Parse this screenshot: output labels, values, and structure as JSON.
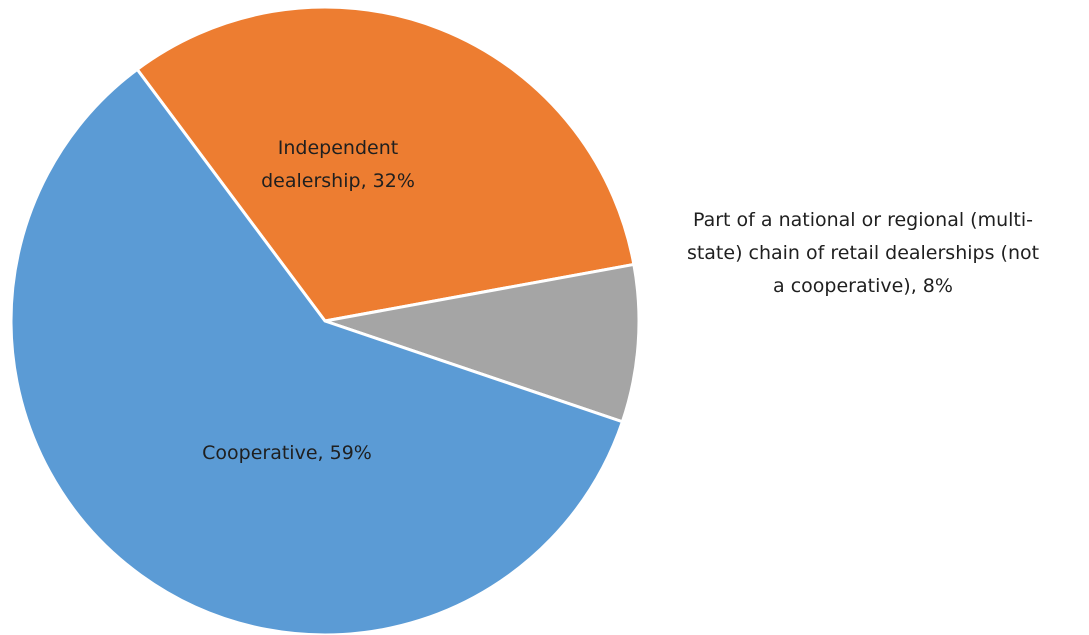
{
  "chart_data": {
    "type": "pie",
    "title": "",
    "legend": "none",
    "data_labels": "category name and percentage",
    "slices": [
      {
        "name": "Independent dealership",
        "value": 32,
        "label_lines": [
          "Independent",
          "dealership, 32%"
        ],
        "color": "#ed7d31"
      },
      {
        "name": "Part of a national or regional (multi-state) chain of retail dealerships (not a cooperative)",
        "value": 8,
        "label_lines": [
          "Part of a national or regional (multi-",
          "state) chain of retail dealerships (not",
          "a cooperative), 8%"
        ],
        "color": "#a5a5a5"
      },
      {
        "name": "Cooperative",
        "value": 59,
        "label_lines": [
          "Cooperative, 59%"
        ],
        "color": "#5b9bd5"
      }
    ]
  }
}
